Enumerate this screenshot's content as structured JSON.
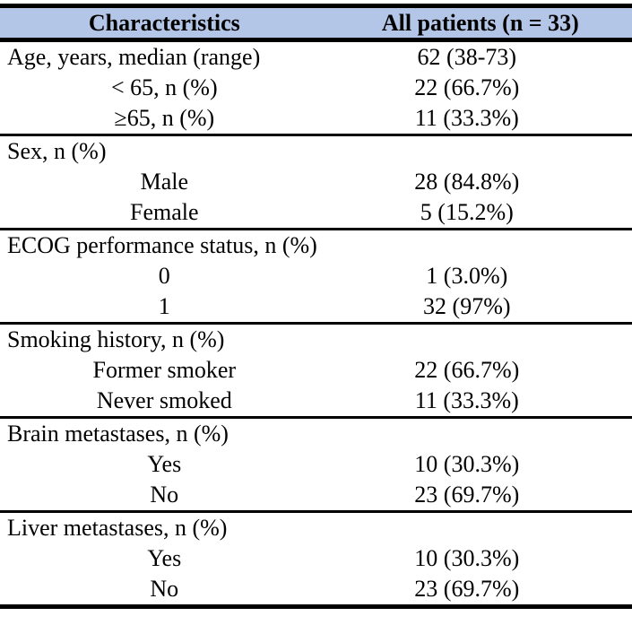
{
  "table": {
    "title_semantic": "patient-characteristics-table",
    "header": {
      "col1": "Characteristics",
      "col2": "All patients (n = 33)"
    },
    "style": {
      "header_bg": "#b4c6e7",
      "border_color": "#000000",
      "text_color": "#000000"
    },
    "rows": [
      {
        "label": "Age, years, median (range)",
        "value": "62 (38-73)"
      },
      {
        "label": "< 65, n (%)",
        "value": "22 (66.7%)"
      },
      {
        "label": "≥65, n (%)",
        "value": "11 (33.3%)"
      },
      {
        "label": "Sex, n (%)",
        "value": ""
      },
      {
        "label": "Male",
        "value": "28 (84.8%)"
      },
      {
        "label": "Female",
        "value": "5 (15.2%)"
      },
      {
        "label": "ECOG performance status, n (%)",
        "value": ""
      },
      {
        "label": "0",
        "value": "1 (3.0%)"
      },
      {
        "label": "1",
        "value": "32 (97%)"
      },
      {
        "label": "Smoking history, n (%)",
        "value": ""
      },
      {
        "label": "Former smoker",
        "value": "22 (66.7%)"
      },
      {
        "label": "Never smoked",
        "value": "11 (33.3%)"
      },
      {
        "label": "Brain metastases, n (%)",
        "value": ""
      },
      {
        "label": "Yes",
        "value": "10 (30.3%)"
      },
      {
        "label": "No",
        "value": "23 (69.7%)"
      },
      {
        "label": "Liver metastases, n (%)",
        "value": ""
      },
      {
        "label": "Yes",
        "value": "10 (30.3%)"
      },
      {
        "label": "No",
        "value": "23 (69.7%)"
      }
    ]
  }
}
